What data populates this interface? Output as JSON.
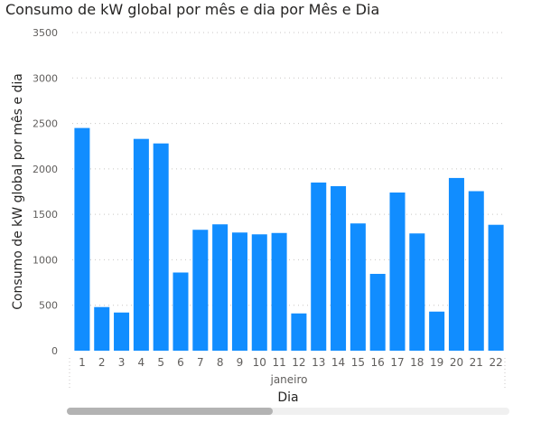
{
  "chart_data": {
    "type": "bar",
    "title": "Consumo de kW global por mês e dia por Mês e Dia",
    "xlabel": "Dia",
    "ylabel": "Consumo de kW global por mês e dia",
    "group_label": "janeiro",
    "categories": [
      "1",
      "2",
      "3",
      "4",
      "5",
      "6",
      "7",
      "8",
      "9",
      "10",
      "11",
      "12",
      "13",
      "14",
      "15",
      "16",
      "17",
      "18",
      "19",
      "20",
      "21",
      "22"
    ],
    "values": [
      2450,
      480,
      420,
      2330,
      2280,
      860,
      1330,
      1390,
      1300,
      1280,
      1295,
      410,
      1850,
      1810,
      1400,
      845,
      1740,
      1290,
      430,
      1900,
      1755,
      1385
    ],
    "ylim": [
      0,
      3500
    ],
    "yticks": [
      0,
      500,
      1000,
      1500,
      2000,
      2500,
      3000,
      3500
    ],
    "grid": true,
    "bar_color": "#118dff"
  }
}
